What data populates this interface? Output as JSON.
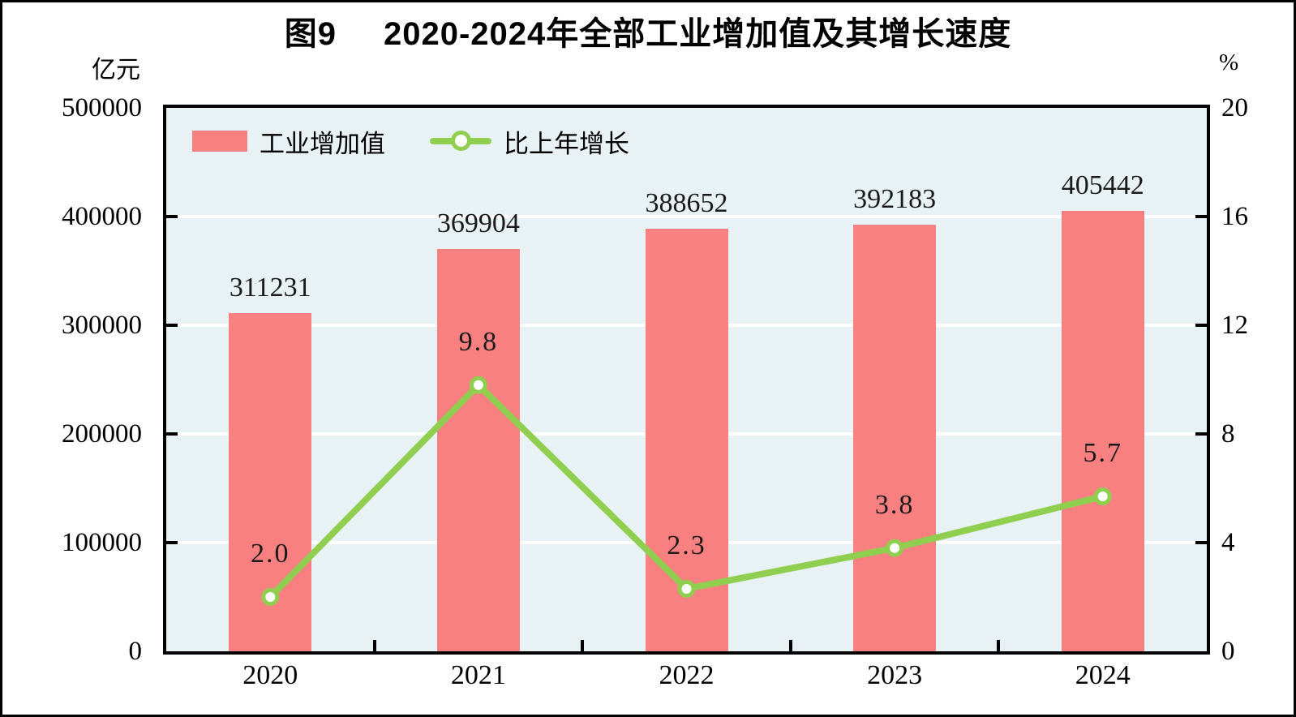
{
  "chart_data": {
    "type": "bar",
    "subtype": "combo-bar-line-dual-axis",
    "title_figure": "图9",
    "title": "2020-2024年全部工业增加值及其增长速度",
    "categories": [
      "2020",
      "2021",
      "2022",
      "2023",
      "2024"
    ],
    "series": [
      {
        "name": "工业增加值",
        "type": "bar",
        "axis": "left",
        "color": "#f98080",
        "values": [
          311231,
          369904,
          388652,
          392183,
          405442
        ],
        "labels": [
          "311231",
          "369904",
          "388652",
          "392183",
          "405442"
        ]
      },
      {
        "name": "比上年增长",
        "type": "line",
        "axis": "right",
        "color": "#8fce4e",
        "marker_fill": "#ffffff",
        "values": [
          2.0,
          9.8,
          2.3,
          3.8,
          5.7
        ],
        "labels": [
          "2.0",
          "9.8",
          "2.3",
          "3.8",
          "5.7"
        ]
      }
    ],
    "left_axis": {
      "unit": "亿元",
      "min": 0,
      "max": 500000,
      "tick_labels": [
        "0",
        "100000",
        "200000",
        "300000",
        "400000",
        "500000"
      ]
    },
    "right_axis": {
      "unit": "%",
      "min": 0,
      "max": 20,
      "tick_labels": [
        "0",
        "4",
        "8",
        "12",
        "16",
        "20"
      ]
    },
    "legend": {
      "position": "top-left",
      "items": [
        "工业增加值",
        "比上年增长"
      ]
    },
    "grid": true,
    "plot_background": "#e8f1f4",
    "axis_color": "#000000"
  }
}
